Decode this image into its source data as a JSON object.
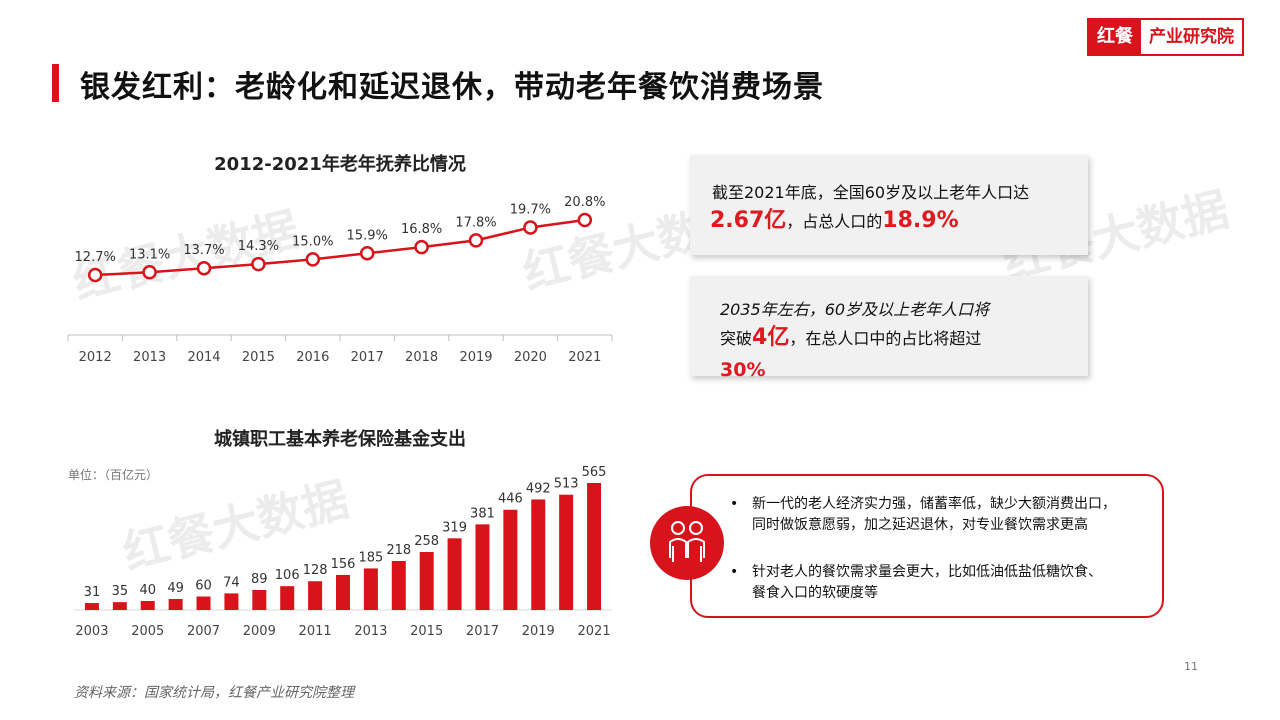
{
  "page": {
    "title": "银发红利：老龄化和延迟退休，带动老年餐饮消费场景",
    "source": "资料来源：国家统计局，红餐产业研究院整理",
    "page_number": "11",
    "accent_color": "#d7141b"
  },
  "logo": {
    "brand": "红餐",
    "institute": "产业研究院"
  },
  "watermark": {
    "text": "红餐大数据"
  },
  "cards": {
    "card1": {
      "line1": "截至2021年底，全国60岁及以上老年人口达",
      "highlight1": "2.67亿",
      "mid": "，占总人口的",
      "highlight2": "18.9%"
    },
    "card2": {
      "line1": "2035年左右，60岁及以上老年人口将",
      "pre": "突破",
      "highlight1": "4亿",
      "post": "，在总人口中的占比将超过",
      "highlight2": "30%"
    }
  },
  "bullets": {
    "dot": "•",
    "items": [
      "新一代的老人经济实力强，储蓄率低，缺少大额消费出口，同时做饭意愿弱，加之延迟退休，对专业餐饮需求更高",
      "针对老人的餐饮需求量会更大，比如低油低盐低糖饮食、餐食入口的软硬度等"
    ],
    "icon": "elderly-couple-icon"
  },
  "chart_data": [
    {
      "type": "line",
      "title": "2012-2021年老年抚养比情况",
      "x": [
        "2012",
        "2013",
        "2014",
        "2015",
        "2016",
        "2017",
        "2018",
        "2019",
        "2020",
        "2021"
      ],
      "values": [
        12.7,
        13.1,
        13.7,
        14.3,
        15.0,
        15.9,
        16.8,
        17.8,
        19.7,
        20.8
      ],
      "labels": [
        "12.7%",
        "13.1%",
        "13.7%",
        "14.3%",
        "15.0%",
        "15.9%",
        "16.8%",
        "17.8%",
        "19.7%",
        "20.8%"
      ],
      "color": "#d7141b",
      "ylim": [
        0,
        25
      ]
    },
    {
      "type": "bar",
      "title": "城镇职工基本养老保险基金支出",
      "unit": "单位：（百亿元）",
      "categories": [
        "2003",
        "2004",
        "2005",
        "2006",
        "2007",
        "2008",
        "2009",
        "2010",
        "2011",
        "2012",
        "2013",
        "2014",
        "2015",
        "2016",
        "2017",
        "2018",
        "2019",
        "2020",
        "2021"
      ],
      "values": [
        31,
        35,
        40,
        49,
        60,
        74,
        89,
        106,
        128,
        156,
        185,
        218,
        258,
        319,
        381,
        446,
        492,
        513,
        565
      ],
      "tick_labels": [
        "2003",
        "2005",
        "2007",
        "2009",
        "2011",
        "2013",
        "2015",
        "2017",
        "2019",
        "2021"
      ],
      "color": "#d7141b",
      "ylim": [
        0,
        600
      ]
    }
  ]
}
